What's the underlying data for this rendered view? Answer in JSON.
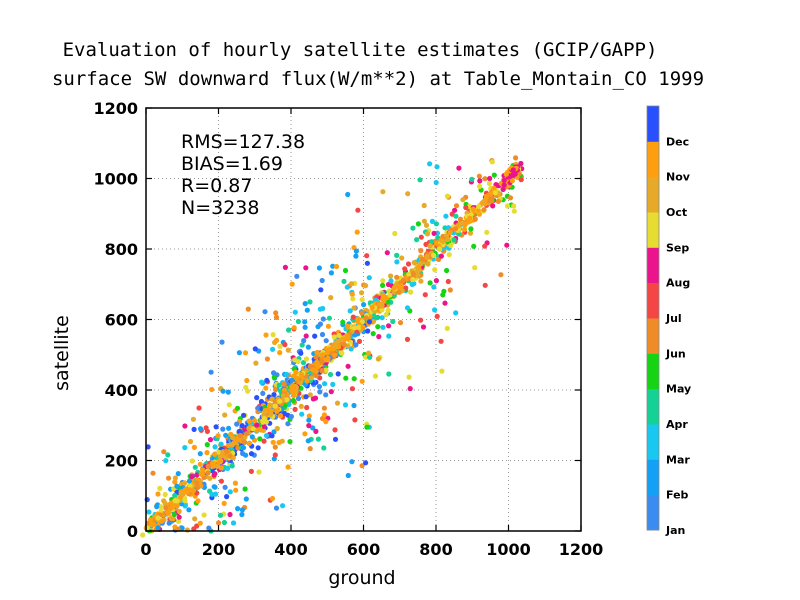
{
  "chart_data": {
    "type": "scatter",
    "title": "Evaluation of hourly satellite estimates (GCIP/GAPP)",
    "subtitle": "surface SW downward flux(W/m**2) at Table_Montain_CO 1999",
    "xlabel": "ground",
    "ylabel": "satellite",
    "xlim": [
      0,
      1200
    ],
    "ylim": [
      0,
      1200
    ],
    "xticks": [
      "0",
      "200",
      "400",
      "600",
      "800",
      "1000",
      "1200"
    ],
    "yticks": [
      "0",
      "200",
      "400",
      "600",
      "800",
      "1000",
      "1200"
    ],
    "grid": true,
    "stats": [
      "RMS=127.38",
      "BIAS=1.69",
      "R=0.87",
      "N=3238"
    ],
    "legend_placement": "right colorbar",
    "legend": [
      {
        "label": "Jan",
        "color": "#3a8cf0"
      },
      {
        "label": "Feb",
        "color": "#14a0f5"
      },
      {
        "label": "Mar",
        "color": "#18c8f0"
      },
      {
        "label": "Apr",
        "color": "#14d296"
      },
      {
        "label": "May",
        "color": "#14d414"
      },
      {
        "label": "Jun",
        "color": "#f08c28"
      },
      {
        "label": "Jul",
        "color": "#f54646"
      },
      {
        "label": "Aug",
        "color": "#ec148c"
      },
      {
        "label": "Sep",
        "color": "#e6dc32"
      },
      {
        "label": "Oct",
        "color": "#e6aa28"
      },
      {
        "label": "Nov",
        "color": "#ff9f0f"
      },
      {
        "label": "Dec",
        "color": "#2850ff"
      }
    ],
    "series_summary": {
      "relationship": "satellite ≈ ground",
      "x_range_dense": [
        0,
        1030
      ],
      "max_point": [
        1025,
        1050
      ],
      "N": 3238
    }
  }
}
